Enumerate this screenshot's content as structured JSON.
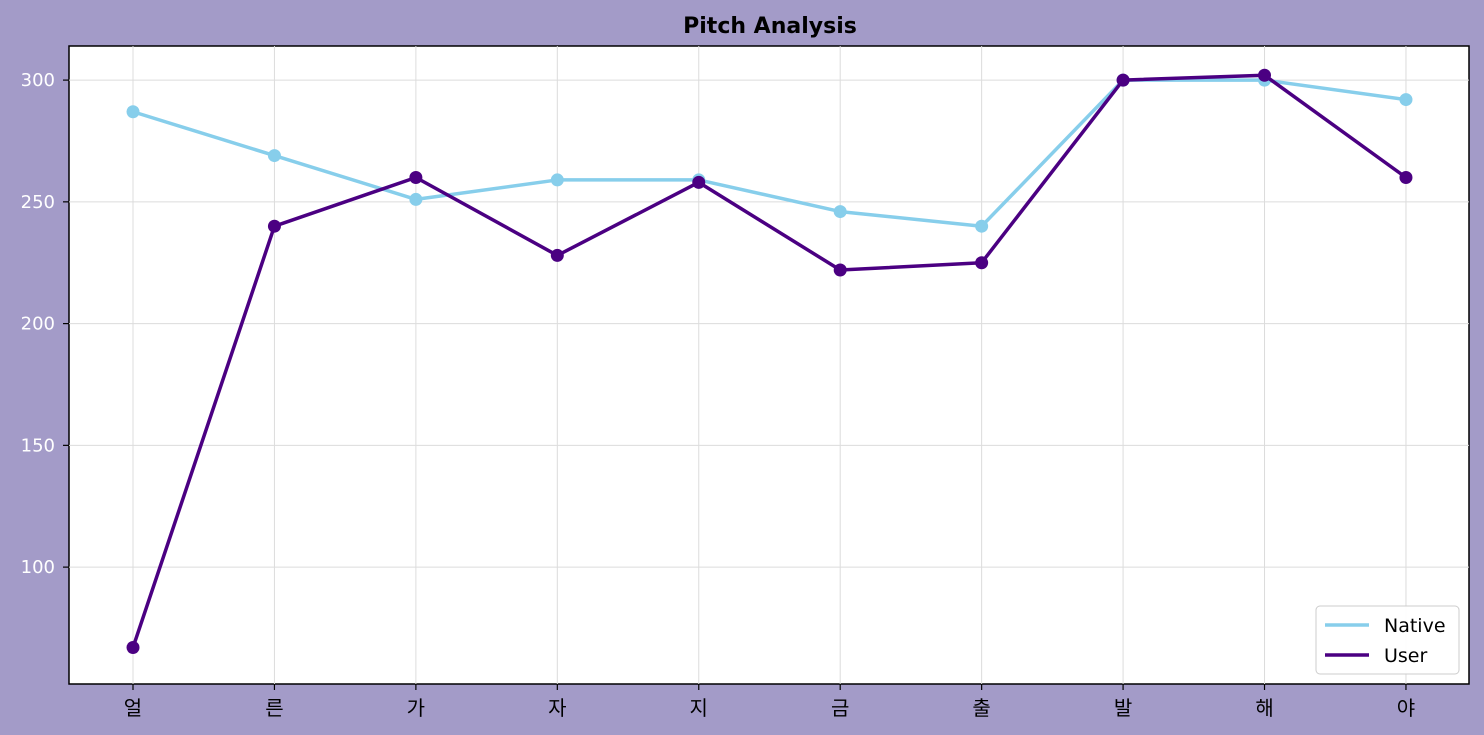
{
  "chart_data": {
    "type": "line",
    "title": "Pitch Analysis",
    "xlabel": "",
    "ylabel": "",
    "categories": [
      "얼",
      "른",
      "가",
      "자",
      "지",
      "금",
      "출",
      "발",
      "해",
      "야"
    ],
    "ylim": [
      52,
      314
    ],
    "yticks": [
      100,
      150,
      200,
      250,
      300
    ],
    "grid": true,
    "legend_position": "lower-right",
    "series": [
      {
        "name": "Native",
        "color": "#87ceeb",
        "values": [
          287,
          269,
          251,
          259,
          259,
          246,
          240,
          300,
          300,
          292
        ]
      },
      {
        "name": "User",
        "color": "#4b0082",
        "values": [
          67,
          240,
          260,
          228,
          258,
          222,
          225,
          300,
          302,
          260
        ]
      }
    ]
  },
  "colors": {
    "figure_background": "#a39bc8",
    "axes_background": "#ffffff",
    "ytick_text": "#ffffff",
    "xtick_text": "#000000"
  }
}
